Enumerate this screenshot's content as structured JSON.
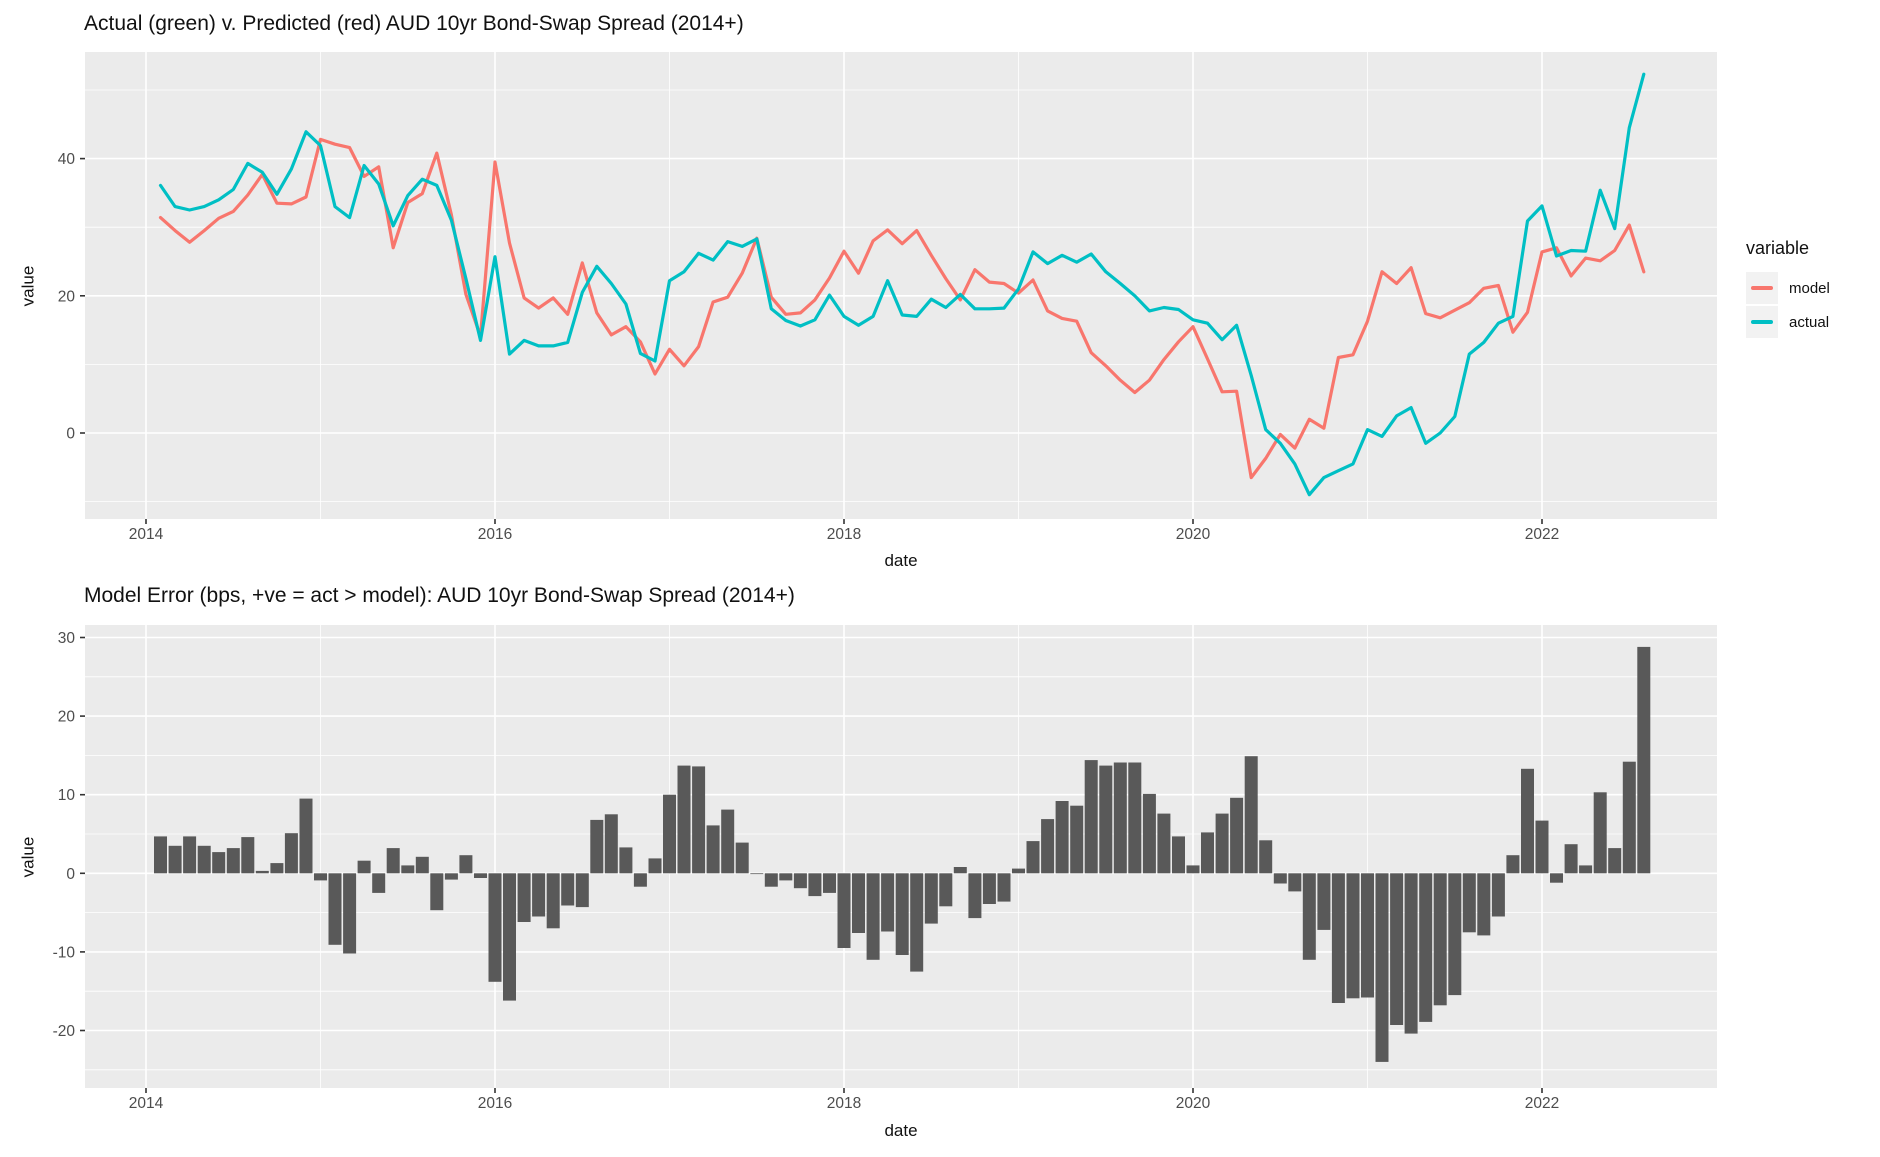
{
  "figure": {
    "background": "#ffffff",
    "panel_background": "#EBEBEB",
    "grid_color": "#FFFFFF",
    "axis_text_color": "#4D4D4D",
    "tick_color": "#333333"
  },
  "legend": {
    "title": "variable",
    "entries": [
      {
        "label": "model",
        "color": "#F8766D"
      },
      {
        "label": "actual",
        "color": "#00BFC4"
      }
    ]
  },
  "chart_data": [
    {
      "type": "line",
      "title": "Actual (green) v. Predicted (red) AUD 10yr Bond-Swap Spread (2014+)",
      "xlabel": "date",
      "ylabel": "value",
      "legend_title": "variable",
      "legend_position": "right",
      "grid": true,
      "x_major_ticks": [
        2014,
        2016,
        2018,
        2020,
        2022
      ],
      "x_minor_ticks": [
        2015,
        2017,
        2019,
        2021
      ],
      "y_major_ticks": [
        0,
        20,
        40
      ],
      "y_minor_ticks": [
        -10,
        10,
        30,
        50
      ],
      "ylim": [
        -12.5,
        55.5
      ],
      "xlim_years": [
        2013.65,
        2023.0
      ],
      "x": [
        "2014-02",
        "2014-03",
        "2014-04",
        "2014-05",
        "2014-06",
        "2014-07",
        "2014-08",
        "2014-09",
        "2014-10",
        "2014-11",
        "2014-12",
        "2015-01",
        "2015-02",
        "2015-03",
        "2015-04",
        "2015-05",
        "2015-06",
        "2015-07",
        "2015-08",
        "2015-09",
        "2015-10",
        "2015-11",
        "2015-12",
        "2016-01",
        "2016-02",
        "2016-03",
        "2016-04",
        "2016-05",
        "2016-06",
        "2016-07",
        "2016-08",
        "2016-09",
        "2016-10",
        "2016-11",
        "2016-12",
        "2017-01",
        "2017-02",
        "2017-03",
        "2017-04",
        "2017-05",
        "2017-06",
        "2017-07",
        "2017-08",
        "2017-09",
        "2017-10",
        "2017-11",
        "2017-12",
        "2018-01",
        "2018-02",
        "2018-03",
        "2018-04",
        "2018-05",
        "2018-06",
        "2018-07",
        "2018-08",
        "2018-09",
        "2018-10",
        "2018-11",
        "2018-12",
        "2019-01",
        "2019-02",
        "2019-03",
        "2019-04",
        "2019-05",
        "2019-06",
        "2019-07",
        "2019-08",
        "2019-09",
        "2019-10",
        "2019-11",
        "2019-12",
        "2020-01",
        "2020-02",
        "2020-03",
        "2020-04",
        "2020-05",
        "2020-06",
        "2020-07",
        "2020-08",
        "2020-09",
        "2020-10",
        "2020-11",
        "2020-12",
        "2021-01",
        "2021-02",
        "2021-03",
        "2021-04",
        "2021-05",
        "2021-06",
        "2021-07",
        "2021-08",
        "2021-09",
        "2021-10",
        "2021-11",
        "2021-12",
        "2022-01",
        "2022-02",
        "2022-03",
        "2022-04",
        "2022-05",
        "2022-06",
        "2022-07",
        "2022-08"
      ],
      "series": [
        {
          "name": "model",
          "color": "#F8766D",
          "values": [
            31.4,
            29.5,
            27.8,
            29.5,
            31.3,
            32.3,
            34.7,
            37.7,
            33.5,
            33.4,
            34.4,
            42.8,
            42.1,
            41.6,
            37.4,
            38.8,
            27.0,
            33.6,
            34.9,
            40.8,
            31.8,
            20.2,
            14.1,
            39.5,
            27.7,
            19.7,
            18.2,
            19.7,
            17.3,
            24.8,
            17.5,
            14.3,
            15.5,
            13.3,
            8.6,
            12.2,
            9.8,
            12.6,
            19.1,
            19.8,
            23.3,
            28.4,
            19.8,
            17.3,
            17.5,
            19.4,
            22.6,
            26.5,
            23.3,
            28.0,
            29.6,
            27.6,
            29.5,
            25.9,
            22.5,
            19.4,
            23.8,
            22.0,
            21.8,
            20.4,
            22.3,
            17.8,
            16.7,
            16.3,
            11.7,
            9.8,
            7.7,
            5.9,
            7.7,
            10.7,
            13.3,
            15.5,
            10.8,
            6.0,
            6.1,
            -6.5,
            -3.7,
            -0.2,
            -2.2,
            2.0,
            0.7,
            11.0,
            11.4,
            16.3,
            23.5,
            21.8,
            24.1,
            17.4,
            16.8,
            17.9,
            19.0,
            21.1,
            21.5,
            14.7,
            17.6,
            26.4,
            27.0,
            22.9,
            25.5,
            25.1,
            26.6,
            30.3,
            23.5
          ]
        },
        {
          "name": "actual",
          "color": "#00BFC4",
          "values": [
            36.1,
            33.0,
            32.5,
            33.0,
            34.0,
            35.5,
            39.3,
            38.0,
            34.8,
            38.5,
            43.9,
            41.9,
            33.0,
            31.4,
            39.0,
            36.3,
            30.2,
            34.6,
            37.0,
            36.1,
            31.0,
            22.5,
            13.5,
            25.7,
            11.5,
            13.5,
            12.7,
            12.7,
            13.2,
            20.5,
            24.3,
            21.8,
            18.8,
            11.6,
            10.5,
            22.2,
            23.5,
            26.2,
            25.2,
            27.9,
            27.2,
            28.3,
            18.1,
            16.4,
            15.6,
            16.5,
            20.1,
            17.0,
            15.7,
            17.0,
            22.2,
            17.2,
            17.0,
            19.5,
            18.3,
            20.2,
            18.1,
            18.1,
            18.2,
            21.0,
            26.4,
            24.7,
            25.9,
            24.9,
            26.1,
            23.5,
            21.8,
            20.0,
            17.8,
            18.3,
            18.0,
            16.5,
            16.0,
            13.6,
            15.7,
            8.4,
            0.5,
            -1.5,
            -4.5,
            -9.0,
            -6.5,
            -5.5,
            -4.5,
            0.5,
            -0.5,
            2.5,
            3.7,
            -1.5,
            0.0,
            2.4,
            11.5,
            13.2,
            16.0,
            17.0,
            30.9,
            33.1,
            25.8,
            26.6,
            26.5,
            35.4,
            29.8,
            44.5,
            52.3
          ]
        }
      ]
    },
    {
      "type": "bar",
      "title": "Model Error (bps, +ve = act > model): AUD 10yr Bond-Swap Spread (2014+)",
      "xlabel": "date",
      "ylabel": "value",
      "grid": true,
      "bar_color": "#595959",
      "x_major_ticks": [
        2014,
        2016,
        2018,
        2020,
        2022
      ],
      "x_minor_ticks": [
        2015,
        2017,
        2019,
        2021
      ],
      "y_major_ticks": [
        -20,
        -10,
        0,
        10,
        20,
        30
      ],
      "y_minor_ticks": [
        -25,
        -15,
        -5,
        5,
        15,
        25
      ],
      "ylim": [
        -27.3,
        31.6
      ],
      "xlim_years": [
        2013.65,
        2023.0
      ],
      "values": [
        4.7,
        3.5,
        4.7,
        3.5,
        2.7,
        3.2,
        4.6,
        0.3,
        1.3,
        5.1,
        9.5,
        -0.9,
        -9.1,
        -10.2,
        1.6,
        -2.5,
        3.2,
        1.0,
        2.1,
        -4.7,
        -0.8,
        2.3,
        -0.6,
        -13.8,
        -16.2,
        -6.2,
        -5.5,
        -7.0,
        -4.1,
        -4.3,
        6.8,
        7.5,
        3.3,
        -1.7,
        1.9,
        10.0,
        13.7,
        13.6,
        6.1,
        8.1,
        3.9,
        -0.1,
        -1.7,
        -0.9,
        -1.9,
        -2.9,
        -2.5,
        -9.5,
        -7.6,
        -11.0,
        -7.4,
        -10.4,
        -12.5,
        -6.4,
        -4.2,
        0.8,
        -5.7,
        -3.9,
        -3.6,
        0.6,
        4.1,
        6.9,
        9.2,
        8.6,
        14.4,
        13.7,
        14.1,
        14.1,
        10.1,
        7.6,
        4.7,
        1.0,
        5.2,
        7.6,
        9.6,
        14.9,
        4.2,
        -1.3,
        -2.3,
        -11.0,
        -7.2,
        -16.5,
        -15.9,
        -15.8,
        -24.0,
        -19.3,
        -20.4,
        -18.9,
        -16.8,
        -15.5,
        -7.5,
        -7.9,
        -5.5,
        2.3,
        13.3,
        6.7,
        -1.2,
        3.7,
        1.0,
        10.3,
        3.2,
        14.2,
        28.8
      ]
    }
  ]
}
